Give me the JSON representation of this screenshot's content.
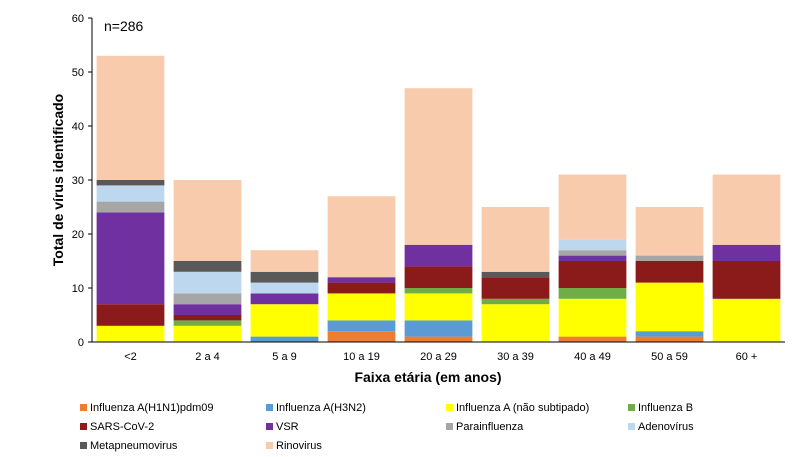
{
  "chart_data": {
    "type": "bar",
    "stacked": true,
    "annotation": "n=286",
    "xlabel": "Faixa etária (em anos)",
    "ylabel": "Total de vírus identificado",
    "ylim": [
      0,
      60
    ],
    "yticks": [
      0,
      10,
      20,
      30,
      40,
      50,
      60
    ],
    "grid": false,
    "legend_position": "bottom",
    "categories": [
      "<2",
      "2 a 4",
      "5 a 9",
      "10 a 19",
      "20 a 29",
      "30 a 39",
      "40 a 49",
      "50 a 59",
      "60 +"
    ],
    "series": [
      {
        "name": "Influenza A(H1N1)pdm09",
        "color": "#ED7D31",
        "values": [
          0,
          0,
          0,
          2,
          1,
          0,
          1,
          1,
          0
        ]
      },
      {
        "name": "Influenza A(H3N2)",
        "color": "#5B9BD5",
        "values": [
          0,
          0,
          1,
          2,
          3,
          0,
          0,
          1,
          0
        ]
      },
      {
        "name": "Influenza A (não subtipado)",
        "color": "#FFFF00",
        "values": [
          3,
          3,
          6,
          5,
          5,
          7,
          7,
          9,
          8
        ]
      },
      {
        "name": "Influenza B",
        "color": "#70AD47",
        "values": [
          0,
          1,
          0,
          0,
          1,
          1,
          2,
          0,
          0
        ]
      },
      {
        "name": "SARS-CoV-2",
        "color": "#8B1A1A",
        "values": [
          4,
          1,
          0,
          2,
          4,
          4,
          5,
          4,
          7
        ]
      },
      {
        "name": "VSR",
        "color": "#7030A0",
        "values": [
          17,
          2,
          2,
          1,
          4,
          0,
          1,
          0,
          3
        ]
      },
      {
        "name": "Parainfluenza",
        "color": "#A6A6A6",
        "values": [
          2,
          2,
          0,
          0,
          0,
          0,
          1,
          1,
          0
        ]
      },
      {
        "name": "Adenovírus",
        "color": "#BDD7EE",
        "values": [
          3,
          4,
          2,
          0,
          0,
          0,
          2,
          0,
          0
        ]
      },
      {
        "name": "Metapneumovirus",
        "color": "#595959",
        "values": [
          1,
          2,
          2,
          0,
          0,
          1,
          0,
          0,
          0
        ]
      },
      {
        "name": "Rinovirus",
        "color": "#F8CBAD",
        "values": [
          23,
          15,
          4,
          15,
          29,
          12,
          12,
          9,
          13
        ]
      }
    ]
  }
}
